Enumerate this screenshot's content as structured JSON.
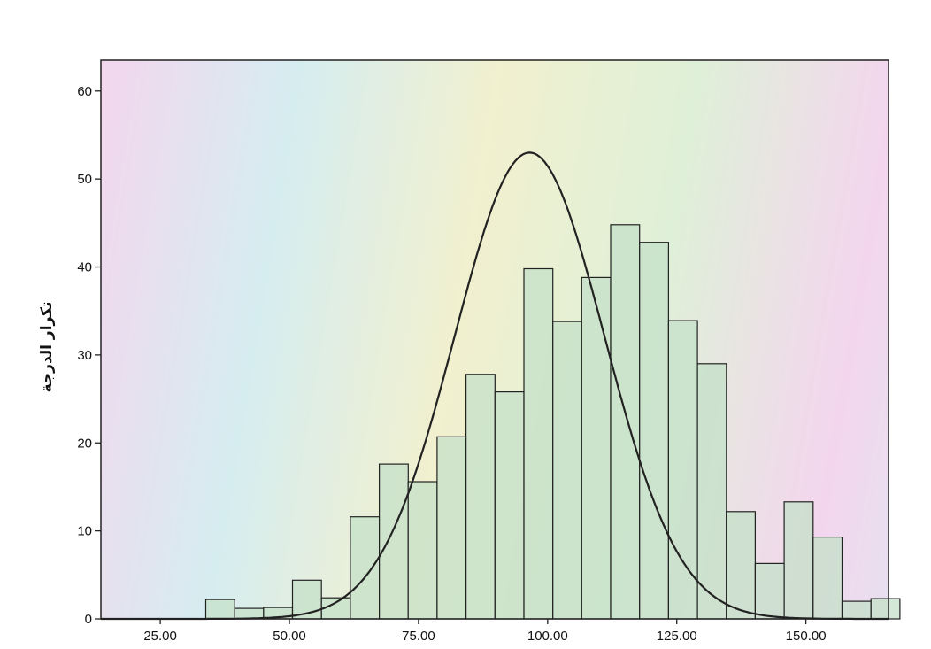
{
  "chart_data": {
    "type": "bar",
    "subtype": "histogram-with-normal-curve",
    "title": "",
    "xlabel": "",
    "ylabel": "تكرار الدرجة",
    "xlim": [
      13.5,
      166
    ],
    "ylim": [
      0,
      63.5
    ],
    "x_ticks": [
      25,
      50,
      75,
      100,
      125,
      150
    ],
    "x_tick_labels": [
      "25.00",
      "50.00",
      "75.00",
      "100.00",
      "125.00",
      "150.00"
    ],
    "y_ticks": [
      0,
      10,
      20,
      30,
      40,
      50,
      60
    ],
    "y_tick_labels": [
      "0",
      "10",
      "20",
      "30",
      "40",
      "50",
      "60"
    ],
    "bin_width": 5.6,
    "bins": [
      {
        "start": 33.8,
        "value": 2.2
      },
      {
        "start": 39.4,
        "value": 1.2
      },
      {
        "start": 45.0,
        "value": 1.3
      },
      {
        "start": 50.6,
        "value": 4.4
      },
      {
        "start": 56.2,
        "value": 2.4
      },
      {
        "start": 61.8,
        "value": 11.6
      },
      {
        "start": 67.4,
        "value": 17.6
      },
      {
        "start": 73.0,
        "value": 15.6
      },
      {
        "start": 78.6,
        "value": 20.7
      },
      {
        "start": 84.2,
        "value": 27.8
      },
      {
        "start": 89.8,
        "value": 25.8
      },
      {
        "start": 95.4,
        "value": 39.8
      },
      {
        "start": 101.0,
        "value": 33.8
      },
      {
        "start": 106.6,
        "value": 38.8
      },
      {
        "start": 112.2,
        "value": 44.8
      },
      {
        "start": 117.8,
        "value": 42.8
      },
      {
        "start": 123.4,
        "value": 33.9
      },
      {
        "start": 129.0,
        "value": 29.0
      },
      {
        "start": 134.6,
        "value": 12.2
      },
      {
        "start": 140.2,
        "value": 6.3
      },
      {
        "start": 145.8,
        "value": 13.3
      },
      {
        "start": 151.4,
        "value": 9.3
      },
      {
        "start": 157.0,
        "value": 2.0
      },
      {
        "start": 162.6,
        "value": 2.3
      }
    ],
    "normal_curve": {
      "mean": 96.5,
      "peak": 53.0,
      "sd": 14.5
    },
    "grid": false,
    "legend": "none",
    "colors": {
      "bar_fill": "#c4e0c8",
      "bar_stroke": "#222222",
      "curve": "#222222",
      "plot_bg": "#eef1ea",
      "frame": "#222222"
    }
  }
}
